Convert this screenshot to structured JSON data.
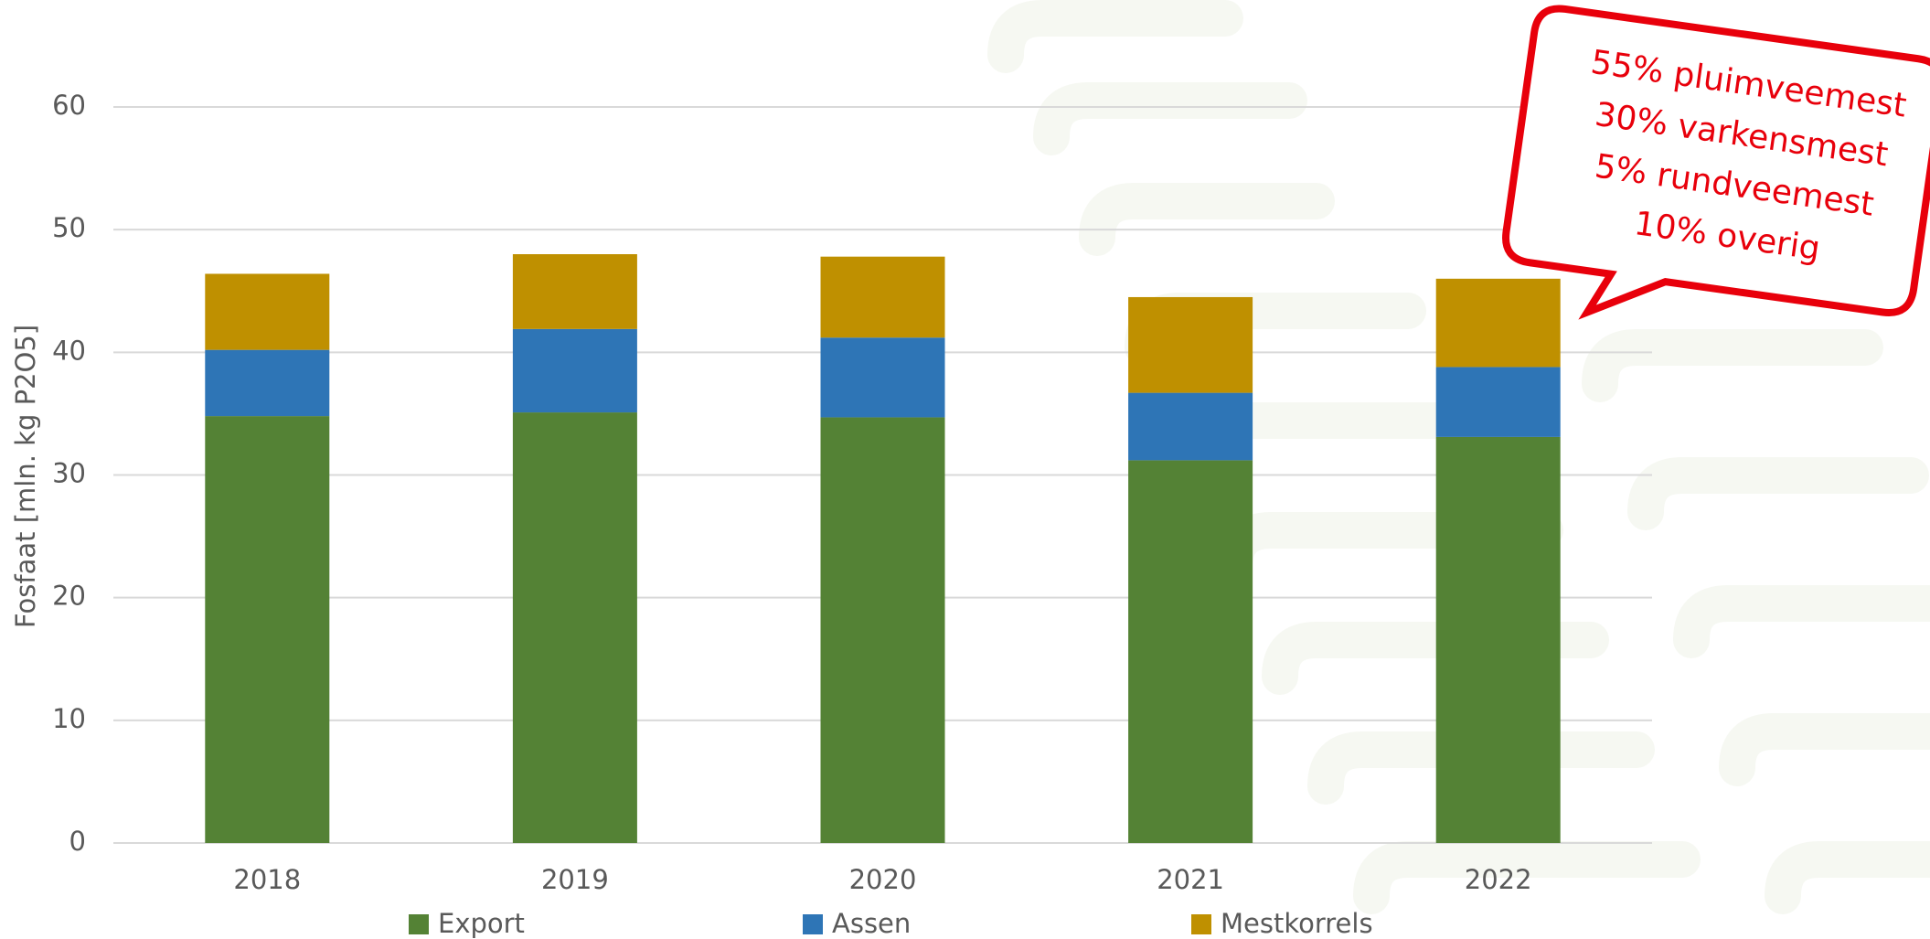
{
  "chart_data": {
    "type": "stacked_bar",
    "y_label": "Fosfaat [mln. kg P2O5]",
    "categories": [
      "2018",
      "2019",
      "2020",
      "2021",
      "2022"
    ],
    "series": [
      {
        "name": "Export",
        "color": "#548235",
        "values": [
          34.8,
          35.1,
          34.7,
          31.2,
          33.1
        ]
      },
      {
        "name": "Assen",
        "color": "#2e75b6",
        "values": [
          5.4,
          6.8,
          6.5,
          5.5,
          5.7
        ]
      },
      {
        "name": "Mestkorrels",
        "color": "#bf9000",
        "values": [
          6.2,
          6.1,
          6.6,
          7.8,
          7.2
        ]
      }
    ],
    "ylim": [
      0,
      60
    ],
    "yticks": [
      0,
      10,
      20,
      30,
      40,
      50,
      60
    ],
    "grid": true,
    "annotation": [
      "55% pluimveemest",
      "30% varkensmest",
      "5% rundveemest",
      "10% overig"
    ]
  }
}
